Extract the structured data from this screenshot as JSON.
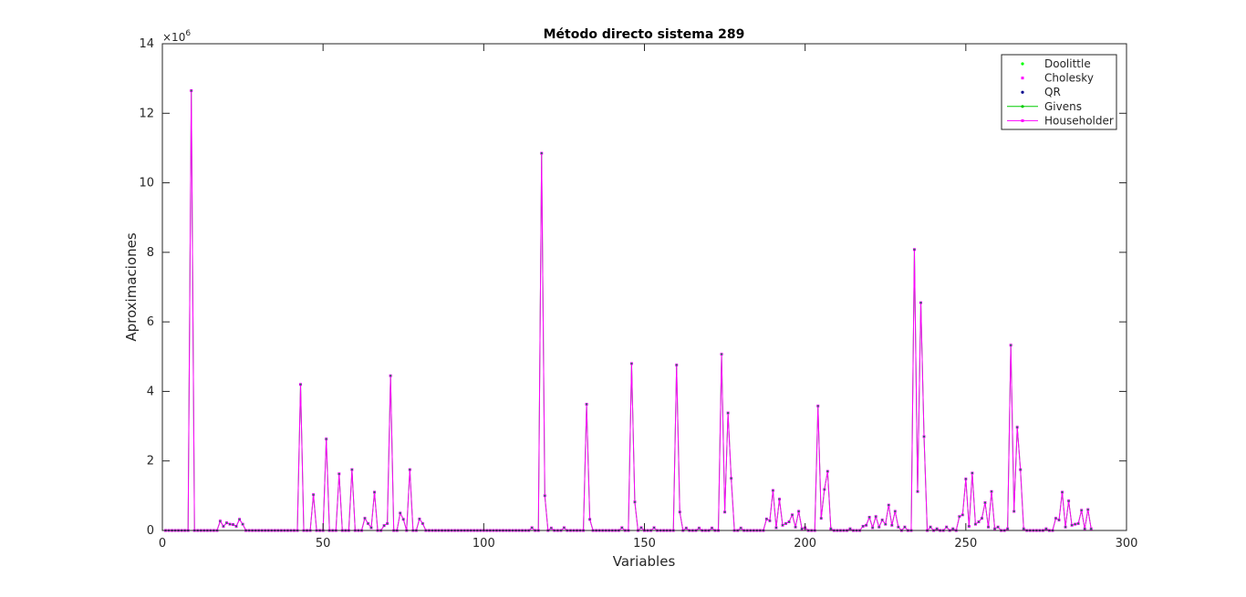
{
  "chart_data": {
    "type": "line",
    "title": "Método directo sistema 289",
    "xlabel": "Variables",
    "ylabel": "Aproximaciones",
    "xlim": [
      0,
      300
    ],
    "ylim": [
      0,
      14000000
    ],
    "x_ticks": [
      0,
      50,
      100,
      150,
      200,
      250,
      300
    ],
    "y_ticks": [
      0,
      2,
      4,
      6,
      8,
      10,
      12,
      14
    ],
    "y_exponent_label": "×10",
    "y_exponent_power": "6",
    "y_scale_factor": 1000000,
    "grid": false,
    "legend_position": "top-right",
    "x_values_note": "x = 1..289",
    "spikes": [
      [
        9,
        12.65
      ],
      [
        18,
        0.27
      ],
      [
        19,
        0.12
      ],
      [
        20,
        0.22
      ],
      [
        21,
        0.18
      ],
      [
        22,
        0.17
      ],
      [
        23,
        0.12
      ],
      [
        24,
        0.32
      ],
      [
        25,
        0.18
      ],
      [
        43,
        4.2
      ],
      [
        47,
        1.03
      ],
      [
        51,
        2.63
      ],
      [
        55,
        1.63
      ],
      [
        59,
        1.75
      ],
      [
        63,
        0.35
      ],
      [
        64,
        0.2
      ],
      [
        65,
        0.08
      ],
      [
        66,
        1.1
      ],
      [
        69,
        0.14
      ],
      [
        70,
        0.2
      ],
      [
        71,
        4.45
      ],
      [
        74,
        0.5
      ],
      [
        75,
        0.32
      ],
      [
        77,
        1.75
      ],
      [
        80,
        0.33
      ],
      [
        81,
        0.2
      ],
      [
        115,
        0.08
      ],
      [
        118,
        10.85
      ],
      [
        119,
        1.0
      ],
      [
        121,
        0.07
      ],
      [
        125,
        0.08
      ],
      [
        132,
        3.63
      ],
      [
        133,
        0.32
      ],
      [
        143,
        0.08
      ],
      [
        146,
        4.8
      ],
      [
        147,
        0.82
      ],
      [
        149,
        0.08
      ],
      [
        153,
        0.08
      ],
      [
        160,
        4.76
      ],
      [
        161,
        0.53
      ],
      [
        163,
        0.07
      ],
      [
        167,
        0.07
      ],
      [
        171,
        0.07
      ],
      [
        174,
        5.07
      ],
      [
        175,
        0.53
      ],
      [
        176,
        3.38
      ],
      [
        177,
        1.5
      ],
      [
        180,
        0.07
      ],
      [
        188,
        0.33
      ],
      [
        189,
        0.28
      ],
      [
        190,
        1.15
      ],
      [
        191,
        0.08
      ],
      [
        192,
        0.9
      ],
      [
        193,
        0.15
      ],
      [
        194,
        0.2
      ],
      [
        195,
        0.25
      ],
      [
        196,
        0.45
      ],
      [
        197,
        0.1
      ],
      [
        198,
        0.55
      ],
      [
        199,
        0.05
      ],
      [
        200,
        0.08
      ],
      [
        204,
        3.58
      ],
      [
        205,
        0.35
      ],
      [
        206,
        1.18
      ],
      [
        207,
        1.7
      ],
      [
        208,
        0.05
      ],
      [
        214,
        0.05
      ],
      [
        218,
        0.12
      ],
      [
        219,
        0.15
      ],
      [
        220,
        0.38
      ],
      [
        221,
        0.08
      ],
      [
        222,
        0.4
      ],
      [
        223,
        0.1
      ],
      [
        224,
        0.3
      ],
      [
        225,
        0.18
      ],
      [
        226,
        0.73
      ],
      [
        227,
        0.15
      ],
      [
        228,
        0.55
      ],
      [
        229,
        0.1
      ],
      [
        231,
        0.1
      ],
      [
        234,
        8.08
      ],
      [
        235,
        1.12
      ],
      [
        236,
        6.55
      ],
      [
        237,
        2.7
      ],
      [
        239,
        0.1
      ],
      [
        241,
        0.05
      ],
      [
        244,
        0.1
      ],
      [
        246,
        0.05
      ],
      [
        248,
        0.4
      ],
      [
        249,
        0.45
      ],
      [
        250,
        1.48
      ],
      [
        251,
        0.12
      ],
      [
        252,
        1.65
      ],
      [
        253,
        0.18
      ],
      [
        254,
        0.25
      ],
      [
        255,
        0.35
      ],
      [
        256,
        0.8
      ],
      [
        257,
        0.1
      ],
      [
        258,
        1.12
      ],
      [
        259,
        0.05
      ],
      [
        260,
        0.1
      ],
      [
        263,
        0.05
      ],
      [
        264,
        5.33
      ],
      [
        265,
        0.55
      ],
      [
        266,
        2.97
      ],
      [
        267,
        1.75
      ],
      [
        268,
        0.05
      ],
      [
        275,
        0.05
      ],
      [
        278,
        0.35
      ],
      [
        279,
        0.3
      ],
      [
        280,
        1.1
      ],
      [
        281,
        0.1
      ],
      [
        282,
        0.85
      ],
      [
        283,
        0.15
      ],
      [
        284,
        0.18
      ],
      [
        285,
        0.2
      ],
      [
        286,
        0.58
      ],
      [
        287,
        0.05
      ],
      [
        288,
        0.6
      ],
      [
        289,
        0.05
      ]
    ],
    "series": [
      {
        "name": "Doolittle",
        "color": "#00ff00",
        "style": "dots"
      },
      {
        "name": "Cholesky",
        "color": "#ff00ff",
        "style": "squares"
      },
      {
        "name": "QR",
        "color": "#00008b",
        "style": "dots"
      },
      {
        "name": "Givens",
        "color": "#00cc00",
        "style": "line-dot"
      },
      {
        "name": "Householder",
        "color": "#ff00ff",
        "style": "line-x"
      }
    ]
  }
}
